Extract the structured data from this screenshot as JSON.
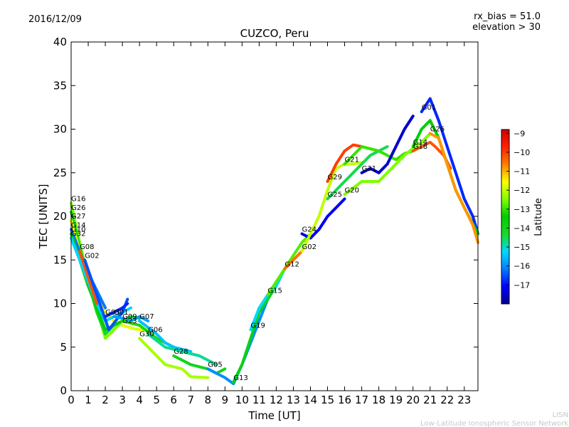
{
  "header": {
    "date": "2016/12/09",
    "rx_bias": "rx_bias = 51.0",
    "elevation": "elevation > 30"
  },
  "footer": {
    "line1": "LISN",
    "line2": "Low-Latitude Ionospheric Sensor Network"
  },
  "chart_data": {
    "type": "line",
    "title": "CUZCO, Peru",
    "xlabel": "Time [UT]",
    "ylabel": "TEC [UNITS]",
    "xlim": [
      0,
      23.8
    ],
    "ylim": [
      0,
      40
    ],
    "xticks": [
      0,
      1,
      2,
      3,
      4,
      5,
      6,
      7,
      8,
      9,
      10,
      11,
      12,
      13,
      14,
      15,
      16,
      17,
      18,
      19,
      20,
      21,
      22,
      23
    ],
    "yticks": [
      0,
      5,
      10,
      15,
      20,
      25,
      30,
      35,
      40
    ],
    "grid": false,
    "colorbar": {
      "label": "Latitude",
      "range": [
        -18,
        -8.8
      ],
      "ticks": [
        -9,
        -10,
        -11,
        -12,
        -13,
        -14,
        -15,
        -16,
        -17
      ],
      "colors": [
        "#00008f",
        "#0000ff",
        "#007fff",
        "#00d9ff",
        "#1ad926",
        "#00cc00",
        "#7fff00",
        "#ffff00",
        "#ff7f00",
        "#ff2200",
        "#cc0000"
      ]
    },
    "series": [
      {
        "name": "G16",
        "lat": -12.5,
        "x": [
          0,
          0.5,
          1,
          1.5,
          2,
          2.5,
          3,
          3.5
        ],
        "y": [
          21.5,
          17,
          13,
          9.5,
          6,
          7,
          8,
          8.5
        ]
      },
      {
        "name": "G26",
        "lat": -14.2,
        "x": [
          0,
          0.5,
          1,
          1.5,
          2,
          2.5,
          3,
          3.5,
          4
        ],
        "y": [
          20.5,
          16.5,
          12.5,
          9,
          6.5,
          7.5,
          8,
          8.5,
          8.3
        ]
      },
      {
        "name": "G27",
        "lat": -11.5,
        "x": [
          0,
          0.5,
          1,
          1.5,
          2,
          2.5
        ],
        "y": [
          19.5,
          16,
          13,
          11,
          9,
          8
        ]
      },
      {
        "name": "G14",
        "lat": -16.2,
        "x": [
          0,
          0.5,
          1,
          1.5,
          2
        ],
        "y": [
          18.5,
          16,
          13.5,
          11.5,
          9.5
        ]
      },
      {
        "name": "G10",
        "lat": -13.5,
        "x": [
          0,
          0.5,
          1,
          1.5,
          2,
          2.5,
          3
        ],
        "y": [
          18,
          15,
          12,
          9.5,
          7,
          7.5,
          8
        ]
      },
      {
        "name": "G32",
        "lat": -15.3,
        "x": [
          0,
          0.5,
          1,
          1.5,
          2,
          2.5,
          3,
          3.5
        ],
        "y": [
          17.5,
          15,
          12.5,
          10,
          8,
          8.5,
          9,
          9.5
        ]
      },
      {
        "name": "G08",
        "lat": -10.2,
        "x": [
          0.5,
          1,
          1.5
        ],
        "y": [
          16,
          13,
          10
        ]
      },
      {
        "name": "G02",
        "lat": -16.5,
        "x": [
          0.8,
          1.5,
          2.2,
          3,
          3.3
        ],
        "y": [
          15,
          11,
          7,
          9,
          10.5
        ]
      },
      {
        "name": "G03",
        "lat": -16.8,
        "x": [
          2,
          2.5,
          3,
          3.3
        ],
        "y": [
          8.5,
          9,
          9.5,
          10
        ]
      },
      {
        "name": "G01",
        "lat": -15.8,
        "x": [
          2.5,
          3,
          3.5,
          4,
          4.5
        ],
        "y": [
          8.5,
          8.3,
          8,
          8.5,
          8
        ]
      },
      {
        "name": "G23",
        "lat": -11.8,
        "x": [
          3,
          3.5,
          4,
          4.5
        ],
        "y": [
          7.5,
          7.2,
          7,
          7
        ]
      },
      {
        "name": "G09",
        "lat": -13.2,
        "x": [
          3,
          4,
          5,
          6,
          6.5
        ],
        "y": [
          8,
          7.5,
          6,
          5,
          4.5
        ]
      },
      {
        "name": "G07",
        "lat": -15.5,
        "x": [
          4,
          5,
          5.5,
          6,
          7
        ],
        "y": [
          8,
          6.5,
          5.5,
          5,
          4.5
        ]
      },
      {
        "name": "G06",
        "lat": -14.8,
        "x": [
          4.5,
          5.5,
          6.5,
          7.5,
          8.5
        ],
        "y": [
          6.5,
          5,
          4.5,
          4,
          3
        ]
      },
      {
        "name": "G30",
        "lat": -12.2,
        "x": [
          4,
          5,
          5.5,
          6.5,
          7,
          8
        ],
        "y": [
          6,
          4,
          3,
          2.5,
          1.6,
          1.5
        ]
      },
      {
        "name": "G28",
        "lat": -14.0,
        "x": [
          6,
          7,
          8,
          8.5,
          9
        ],
        "y": [
          4,
          3,
          2.5,
          2,
          2.5
        ]
      },
      {
        "name": "G05",
        "lat": -16.0,
        "x": [
          8,
          9,
          9.5,
          10,
          11,
          11.5
        ],
        "y": [
          2.5,
          1.5,
          0.8,
          3,
          8,
          10.5
        ]
      },
      {
        "name": "G13",
        "lat": -13.8,
        "x": [
          9.5,
          10,
          10.5,
          11,
          11.5,
          12
        ],
        "y": [
          1,
          3,
          6,
          9,
          10.5,
          12
        ]
      },
      {
        "name": "G19",
        "lat": -15.2,
        "x": [
          10.5,
          11,
          11.5,
          12,
          12.5,
          13
        ],
        "y": [
          7,
          9.5,
          11,
          12,
          14,
          15
        ]
      },
      {
        "name": "G15",
        "lat": -12.8,
        "x": [
          11.5,
          12,
          12.5,
          13,
          13.5,
          14
        ],
        "y": [
          11,
          12.5,
          14,
          15.5,
          17,
          18
        ]
      },
      {
        "name": "G12",
        "lat": -10.5,
        "x": [
          12.5,
          13,
          13.5
        ],
        "y": [
          14,
          15,
          16
        ]
      },
      {
        "name": "G24",
        "lat": -17.2,
        "x": [
          13.5,
          14,
          14.5,
          15,
          15.5,
          16
        ],
        "y": [
          18,
          17.5,
          18.5,
          20,
          21,
          22
        ]
      },
      {
        "name": "G02",
        "lat": -12.0,
        "x": [
          13.5,
          14,
          14.5,
          15,
          15.5,
          16,
          16.5,
          17
        ],
        "y": [
          16,
          18,
          20,
          23,
          25.5,
          26,
          26,
          26.2
        ]
      },
      {
        "name": "G29",
        "lat": -10.0,
        "x": [
          15,
          15.5,
          16,
          16.5,
          17
        ],
        "y": [
          24,
          26,
          27.5,
          28.2,
          28
        ]
      },
      {
        "name": "G25",
        "lat": -14.5,
        "x": [
          15,
          16,
          17,
          17.5,
          18,
          18.5
        ],
        "y": [
          22,
          24,
          26,
          27,
          27.5,
          28
        ]
      },
      {
        "name": "G21",
        "lat": -13.0,
        "x": [
          16,
          17,
          18,
          18.5,
          19,
          19.5,
          20
        ],
        "y": [
          26,
          28,
          27.5,
          27,
          26.5,
          27.2,
          27.5
        ]
      },
      {
        "name": "G20",
        "lat": -12.5,
        "x": [
          16,
          17,
          18,
          18.5,
          19,
          19.5,
          20,
          20.5,
          21
        ],
        "y": [
          22.5,
          24,
          24,
          25,
          26,
          27,
          27.8,
          28.5,
          29.5
        ]
      },
      {
        "name": "G31",
        "lat": -17.5,
        "x": [
          17,
          17.5,
          18,
          18.5,
          19,
          19.5,
          20
        ],
        "y": [
          25,
          25.5,
          25,
          26,
          28,
          30,
          31.5
        ]
      },
      {
        "name": "G18",
        "lat": -10.2,
        "x": [
          20,
          20.5,
          21,
          21.3,
          21.8,
          22.2
        ],
        "y": [
          27.5,
          28,
          28.5,
          28,
          27,
          25.5
        ]
      },
      {
        "name": "G01",
        "lat": -16.8,
        "x": [
          20.5,
          21,
          21.5,
          22,
          22.5,
          23,
          23.5,
          23.8
        ],
        "y": [
          32,
          33.5,
          31,
          28,
          25,
          22,
          20,
          18
        ]
      },
      {
        "name": "G14",
        "lat": -13.5,
        "x": [
          20,
          20.5,
          21,
          21.5,
          22,
          22.5,
          23,
          23.8
        ],
        "y": [
          28,
          30,
          31,
          29,
          26,
          23,
          21,
          18
        ]
      },
      {
        "name": "G26",
        "lat": -10.8,
        "x": [
          21,
          21.5,
          22,
          22.5,
          23,
          23.5,
          23.8
        ],
        "y": [
          29.5,
          29,
          26,
          23,
          21,
          19,
          17
        ]
      }
    ]
  }
}
